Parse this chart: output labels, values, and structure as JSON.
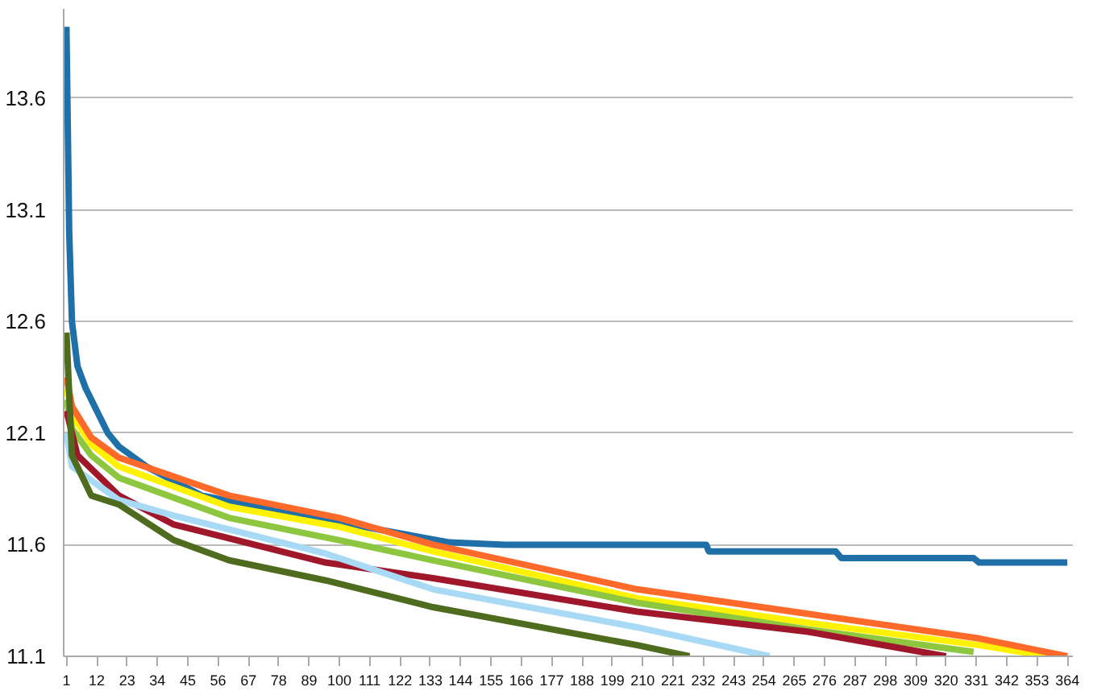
{
  "chart_data": {
    "type": "line",
    "ylim": [
      11.1,
      14.0
    ],
    "yticks": [
      11.1,
      11.6,
      12.1,
      12.6,
      13.1,
      13.6
    ],
    "xlim": [
      0,
      366
    ],
    "xticks": [
      1,
      12,
      23,
      34,
      45,
      56,
      67,
      78,
      89,
      100,
      111,
      122,
      133,
      144,
      155,
      166,
      177,
      188,
      199,
      210,
      221,
      232,
      243,
      254,
      265,
      276,
      287,
      298,
      309,
      320,
      331,
      342,
      353,
      364
    ],
    "grid": "y",
    "marker": "none",
    "line_style": "solid",
    "series": [
      {
        "color": "#1f6fa8",
        "x": [
          1,
          2,
          3,
          5,
          8,
          12,
          16,
          20,
          30,
          50,
          100,
          140,
          160,
          233,
          234,
          280,
          282,
          330,
          332,
          364
        ],
        "values": [
          13.92,
          13.0,
          12.6,
          12.4,
          12.3,
          12.2,
          12.1,
          12.04,
          11.95,
          11.82,
          11.7,
          11.61,
          11.6,
          11.6,
          11.57,
          11.57,
          11.54,
          11.54,
          11.52,
          11.52
        ]
      },
      {
        "color": "#fff200",
        "x": [
          1,
          3,
          10,
          20,
          60,
          100,
          134,
          208,
          270,
          332,
          357
        ],
        "values": [
          12.3,
          12.18,
          12.05,
          11.95,
          11.77,
          11.68,
          11.57,
          11.36,
          11.25,
          11.15,
          11.1
        ]
      },
      {
        "color": "#8dc63f",
        "x": [
          1,
          3,
          10,
          20,
          60,
          100,
          134,
          208,
          270,
          330
        ],
        "values": [
          12.25,
          12.12,
          12.0,
          11.9,
          11.72,
          11.62,
          11.53,
          11.34,
          11.22,
          11.12
        ]
      },
      {
        "color": "#ff6a2a",
        "x": [
          1,
          3,
          10,
          20,
          60,
          100,
          134,
          208,
          270,
          332,
          364
        ],
        "values": [
          12.35,
          12.22,
          12.08,
          11.99,
          11.82,
          11.72,
          11.6,
          11.4,
          11.29,
          11.18,
          11.1
        ]
      },
      {
        "color": "#a0172b",
        "x": [
          1,
          5,
          20,
          40,
          95,
          134,
          208,
          270,
          320
        ],
        "values": [
          12.2,
          12.0,
          11.82,
          11.69,
          11.52,
          11.45,
          11.3,
          11.21,
          11.1
        ]
      },
      {
        "color": "#a8daf5",
        "x": [
          1,
          3,
          20,
          40,
          95,
          134,
          208,
          256
        ],
        "values": [
          12.1,
          11.95,
          11.8,
          11.73,
          11.56,
          11.4,
          11.23,
          11.1
        ]
      },
      {
        "color": "#4f6b1e",
        "x": [
          1,
          3,
          10,
          20,
          40,
          60,
          95,
          134,
          208,
          227
        ],
        "values": [
          12.55,
          12.0,
          11.82,
          11.78,
          11.62,
          11.53,
          11.44,
          11.32,
          11.15,
          11.1
        ]
      }
    ]
  }
}
